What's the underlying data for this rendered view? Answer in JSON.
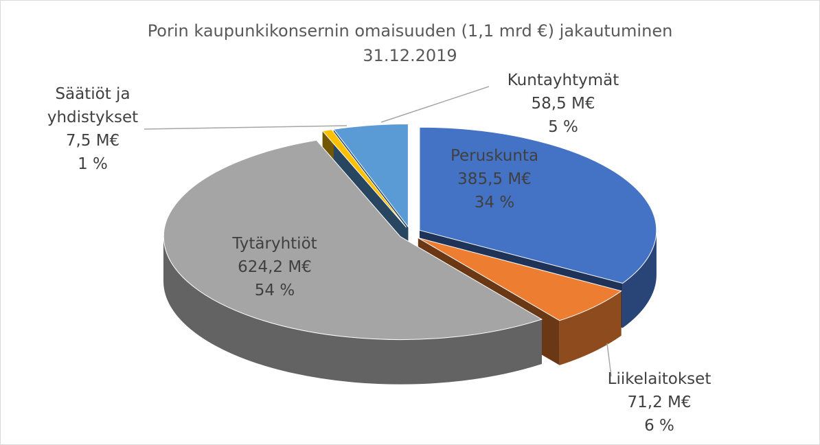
{
  "chart_data": {
    "type": "pie",
    "title": "Porin kaupunkikonsernin omaisuuden (1,1 mrd €) jakautuminen",
    "subtitle": "31.12.2019",
    "categories": [
      "Peruskunta",
      "Liikelaitokset",
      "Tytäryhtiöt",
      "Säätiöt ja yhdistykset",
      "Kuntayhtymät"
    ],
    "values": [
      385.5,
      71.2,
      624.2,
      7.5,
      58.5
    ],
    "value_labels": [
      "385,5 M€",
      "71,2 M€",
      "624,2 M€",
      "7,5 M€",
      "58,5 M€"
    ],
    "shares": [
      34,
      6,
      54,
      1,
      5
    ],
    "share_labels": [
      "34 %",
      "6 %",
      "54 %",
      "1 %",
      "5 %"
    ],
    "colors": [
      "#4472c4",
      "#ed7d31",
      "#a5a5a5",
      "#ffc000",
      "#5b9bd5"
    ]
  }
}
